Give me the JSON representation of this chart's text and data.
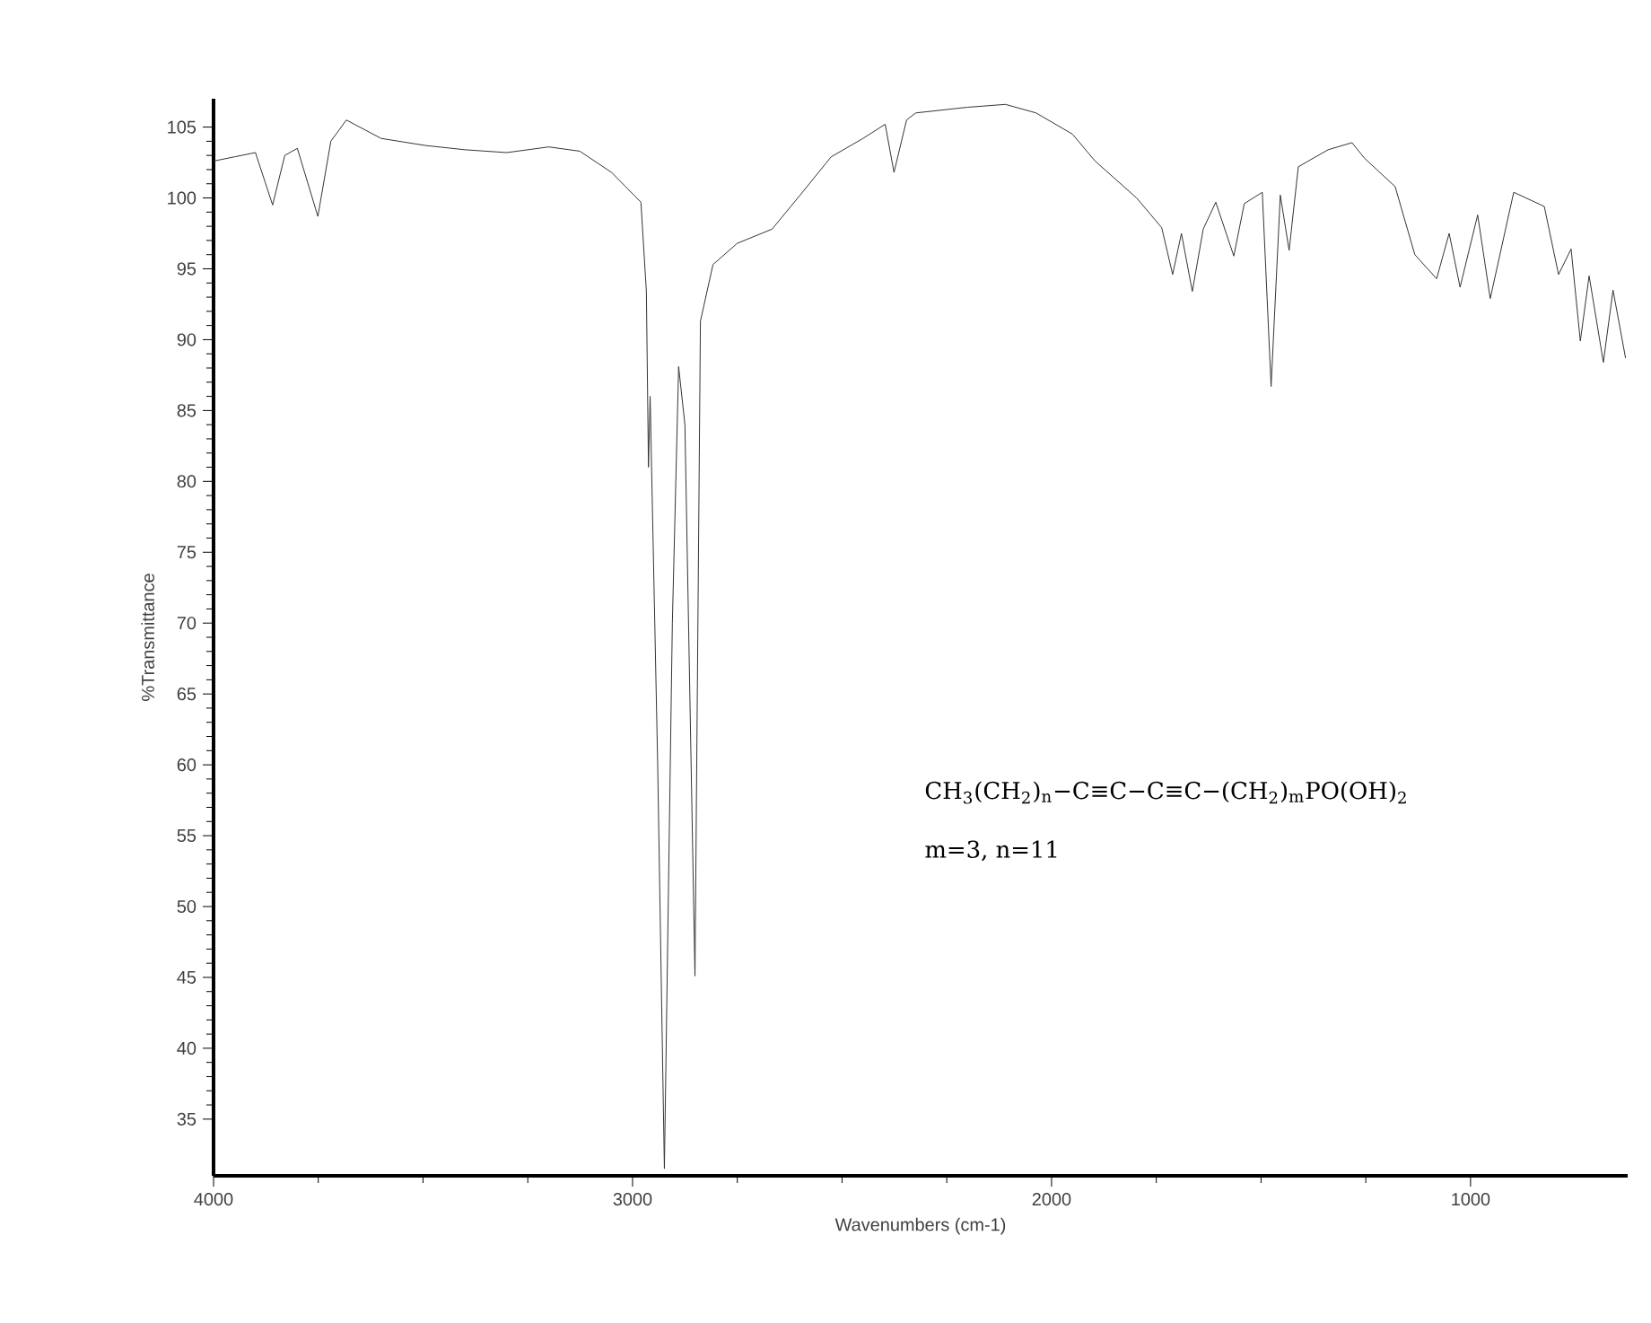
{
  "chart_data": {
    "type": "line",
    "xlabel": "Wavenumbers (cm-1)",
    "ylabel": "%Transmittance",
    "x": [
      4000,
      3950,
      3900,
      3859,
      3830,
      3800,
      3751,
      3720,
      3683,
      3600,
      3494,
      3400,
      3300,
      3200,
      3126,
      3050,
      2980,
      2967,
      2962,
      2958,
      2940,
      2924,
      2905,
      2890,
      2875,
      2851,
      2838,
      2808,
      2750,
      2667,
      2600,
      2526,
      2450,
      2397,
      2376,
      2346,
      2324,
      2200,
      2110,
      2037,
      1950,
      1896,
      1797,
      1737,
      1711,
      1690,
      1664,
      1638,
      1608,
      1565,
      1540,
      1497,
      1476,
      1454,
      1433,
      1411,
      1340,
      1283,
      1253,
      1180,
      1133,
      1081,
      1051,
      1025,
      983,
      953,
      897,
      824,
      790,
      760,
      738,
      717,
      683,
      660,
      630
    ],
    "series": [
      {
        "color": "#333333",
        "values": [
          102.6,
          102.9,
          103.2,
          99.5,
          103.0,
          103.5,
          98.7,
          104.0,
          105.5,
          104.2,
          103.7,
          103.4,
          103.2,
          103.6,
          103.3,
          101.8,
          99.7,
          93.4,
          81,
          86,
          60,
          31.5,
          70,
          88.1,
          84,
          45.1,
          91.3,
          95.3,
          96.8,
          97.8,
          100.2,
          102.9,
          104.2,
          105.2,
          101.8,
          105.5,
          106,
          106.4,
          106.6,
          106,
          104.5,
          102.6,
          100,
          97.9,
          94.6,
          97.5,
          93.4,
          97.8,
          99.7,
          95.9,
          99.6,
          100.4,
          86.7,
          100.2,
          96.3,
          102.2,
          103.4,
          103.9,
          102.8,
          100.8,
          96,
          94.3,
          97.5,
          93.7,
          98.8,
          92.9,
          100.4,
          99.4,
          94.6,
          96.4,
          89.9,
          94.5,
          88.4,
          93.5,
          88.7
        ]
      }
    ],
    "xlim": [
      4000,
      625
    ],
    "ylim": [
      31,
      107
    ],
    "xticks": [
      4000,
      3000,
      2000,
      1000
    ],
    "yticks": [
      35,
      40,
      45,
      50,
      55,
      60,
      65,
      70,
      75,
      80,
      85,
      90,
      95,
      100,
      105
    ],
    "grid": false,
    "marker": "none",
    "line_style": "solid",
    "annotations": [
      "CH$_{3}$(CH$_{2}$)$_{n}$−C≡C−C≡C−(CH$_{2}$)$_{m}$PO(OH)$_{2}$",
      "m=3, n=11"
    ]
  }
}
